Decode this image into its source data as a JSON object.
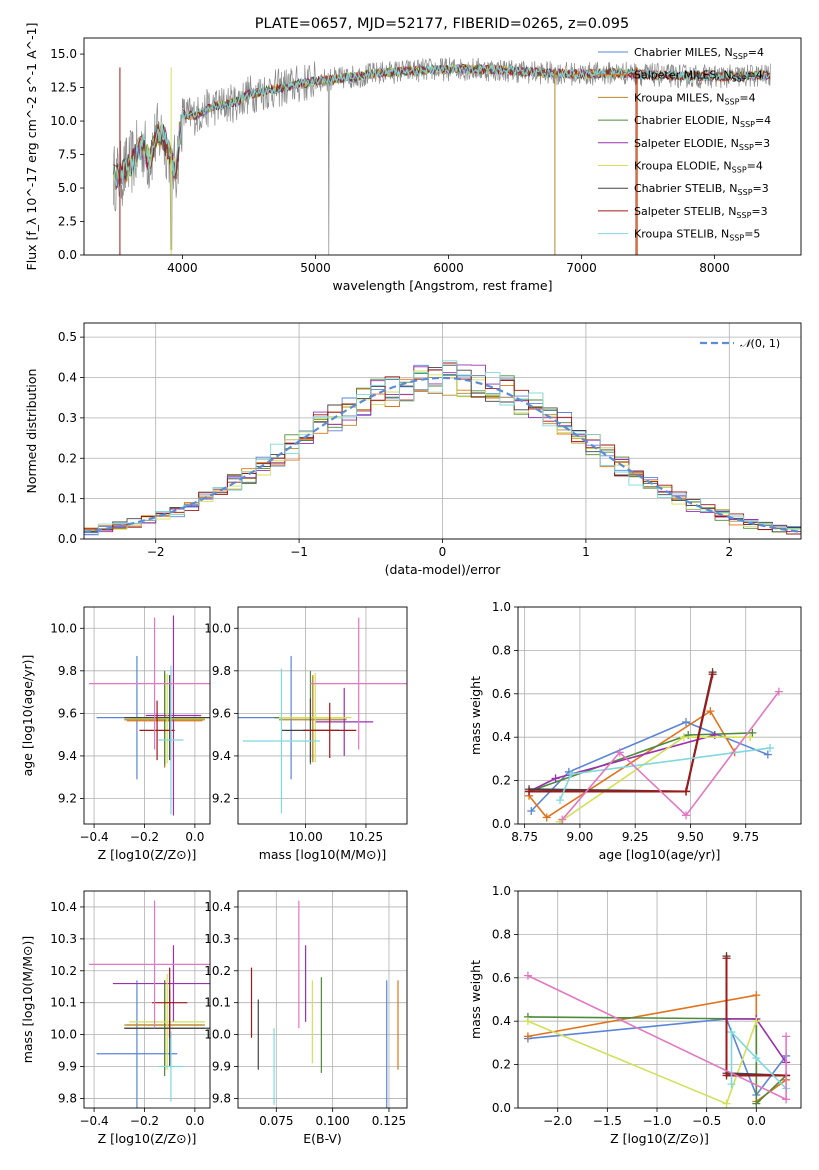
{
  "figure": {
    "title": "PLATE=0657, MJD=52177, FIBERID=0265, z=0.095"
  },
  "models": [
    {
      "name": "Chabrier MILES",
      "nssp": "4",
      "color": "#5b85d6"
    },
    {
      "name": "Salpeter MILES",
      "nssp": "4",
      "color": "#e0731c"
    },
    {
      "name": "Kroupa MILES",
      "nssp": "4",
      "color": "#b5882a"
    },
    {
      "name": "Chabrier ELODIE",
      "nssp": "4",
      "color": "#4f8a3c"
    },
    {
      "name": "Salpeter ELODIE",
      "nssp": "3",
      "color": "#9b30b0"
    },
    {
      "name": "Kroupa ELODIE",
      "nssp": "4",
      "color": "#d4e05a"
    },
    {
      "name": "Chabrier STELIB",
      "nssp": "3",
      "color": "#444444"
    },
    {
      "name": "Salpeter STELIB",
      "nssp": "3",
      "color": "#a01818"
    },
    {
      "name": "Kroupa STELIB",
      "nssp": "5",
      "color": "#7fd8dc"
    }
  ],
  "chart_data": [
    {
      "id": "spectrum",
      "type": "line",
      "title": "PLATE=0657, MJD=52177, FIBERID=0265, z=0.095",
      "xlabel": "wavelength [Angstrom, rest frame]",
      "ylabel": "Flux [f_λ 10^-17 erg cm^-2 s^-1 A^-1]",
      "xlim": [
        3260,
        8650
      ],
      "ylim": [
        0,
        16.2
      ],
      "xticks": [
        4000,
        5000,
        6000,
        7000,
        8000
      ],
      "yticks": [
        0.0,
        2.5,
        5.0,
        7.5,
        10.0,
        12.5,
        15.0
      ],
      "legend": "right",
      "grid": false,
      "data_x": [
        3500,
        3550,
        3600,
        3650,
        3700,
        3750,
        3800,
        3850,
        3900,
        3950,
        4000,
        4100,
        4200,
        4300,
        4400,
        4500,
        4600,
        4800,
        5000,
        5200,
        5500,
        5800,
        6100,
        6400,
        6700,
        7000,
        7300,
        7600,
        8000,
        8400
      ],
      "data_y": [
        5.8,
        6.1,
        6.7,
        7.4,
        8.2,
        7.0,
        8.8,
        9.0,
        7.6,
        6.2,
        10.5,
        10.4,
        11.0,
        11.2,
        11.4,
        12.0,
        12.2,
        12.6,
        13.0,
        13.2,
        13.6,
        13.8,
        13.9,
        13.8,
        13.6,
        13.5,
        13.6,
        13.4,
        13.3,
        13.4
      ]
    },
    {
      "id": "residuals",
      "type": "line",
      "xlabel": "(data-model)/error",
      "ylabel": "Normed distribution",
      "xlim": [
        -2.5,
        2.5
      ],
      "ylim": [
        0,
        0.535
      ],
      "xticks": [
        -2,
        -1,
        0,
        1,
        2
      ],
      "xtick_labels": [
        "−2",
        "−1",
        "0",
        "1",
        "2"
      ],
      "yticks": [
        0.0,
        0.1,
        0.2,
        0.3,
        0.4,
        0.5
      ],
      "grid": true,
      "legend": "top-right",
      "reference": {
        "name": "N(0,1)",
        "mu": 0,
        "sigma": 1
      },
      "bin_width": 0.1
    },
    {
      "id": "age-vs-Z",
      "type": "scatter",
      "xlabel": "Z [log10(Z/Z⊙)]",
      "ylabel": "age  [log10(age/yr)]",
      "xlim": [
        -0.44,
        0.06
      ],
      "ylim": [
        9.08,
        10.1
      ],
      "xticks": [
        -0.4,
        -0.2,
        0.0
      ],
      "xtick_labels": [
        "−0.4",
        "−0.2",
        "0.0"
      ],
      "yticks": [
        9.2,
        9.4,
        9.6,
        9.8,
        10.0
      ],
      "grid": true,
      "errorbars": [
        {
          "model": 0,
          "x": -0.23,
          "xerr": 0.16,
          "y": 9.58,
          "yerr": 0.29
        },
        {
          "model": 1,
          "x": -0.12,
          "xerr": 0.15,
          "y": 9.565,
          "yerr": 0.22
        },
        {
          "model": 2,
          "x": -0.12,
          "xerr": 0.16,
          "y": 9.57,
          "yerr": 0.22
        },
        {
          "model": 3,
          "x": -0.12,
          "xerr": 0.16,
          "y": 9.58,
          "yerr": 0.22
        },
        {
          "model": 4,
          "x": -0.085,
          "xerr": 0.11,
          "y": 9.59,
          "yerr": 0.47
        },
        {
          "model": 5,
          "x": -0.11,
          "xerr": 0.15,
          "y": 9.575,
          "yerr": 0.21
        },
        {
          "model": 6,
          "x": -0.1,
          "xerr": 0.18,
          "y": 9.58,
          "yerr": 0.2
        },
        {
          "model": 7,
          "x": -0.15,
          "xerr": 0.07,
          "y": 9.52,
          "yerr": 0.14
        },
        {
          "model": 8,
          "x": -0.095,
          "xerr": 0.05,
          "y": 9.475,
          "yerr": 0.35
        },
        {
          "model": 9,
          "x": -0.16,
          "xerr": 0.26,
          "y": 9.74,
          "yerr": 0.31
        }
      ]
    },
    {
      "id": "age-vs-mass",
      "type": "scatter",
      "xlabel": "mass [log10(M/M⊙)]",
      "xlim": [
        9.72,
        10.42
      ],
      "ylim": [
        9.08,
        10.1
      ],
      "xticks": [
        10.0,
        10.25
      ],
      "xtick_labels": [
        "10.00",
        "10.25"
      ],
      "yticks": [
        9.2,
        9.4,
        9.6,
        9.8,
        10.0
      ],
      "grid": true,
      "errorbars": [
        {
          "model": 0,
          "x": 9.94,
          "xerr": 0.23,
          "y": 9.58,
          "yerr": 0.29
        },
        {
          "model": 1,
          "x": 10.03,
          "xerr": 0.14,
          "y": 9.58,
          "yerr": 0.2
        },
        {
          "model": 2,
          "x": 10.03,
          "xerr": 0.14,
          "y": 9.57,
          "yerr": 0.2
        },
        {
          "model": 3,
          "x": 10.02,
          "xerr": 0.15,
          "y": 9.58,
          "yerr": 0.22
        },
        {
          "model": 4,
          "x": 10.16,
          "xerr": 0.12,
          "y": 9.56,
          "yerr": 0.16
        },
        {
          "model": 5,
          "x": 10.04,
          "xerr": 0.15,
          "y": 9.58,
          "yerr": 0.21
        },
        {
          "model": 6,
          "x": 10.02,
          "xerr": 0.12,
          "y": 9.52,
          "yerr": 0.15
        },
        {
          "model": 7,
          "x": 10.1,
          "xerr": 0.11,
          "y": 9.52,
          "yerr": 0.13
        },
        {
          "model": 8,
          "x": 9.9,
          "xerr": 0.16,
          "y": 9.47,
          "yerr": 0.34
        },
        {
          "model": 9,
          "x": 10.22,
          "xerr": 0.2,
          "y": 9.74,
          "yerr": 0.31
        }
      ]
    },
    {
      "id": "weight-vs-age",
      "type": "line",
      "xlabel": "age  [log10(age/yr)]",
      "ylabel": "mass weight",
      "xlim": [
        8.72,
        10.0
      ],
      "ylim": [
        0,
        1.0
      ],
      "xticks": [
        8.75,
        9.0,
        9.25,
        9.5,
        9.75
      ],
      "xtick_labels": [
        "8.75",
        "9.00",
        "9.25",
        "9.50",
        "9.75"
      ],
      "yticks": [
        0.0,
        0.2,
        0.4,
        0.6,
        0.8,
        1.0
      ],
      "grid": true,
      "series": [
        {
          "model": 0,
          "x": [
            8.78,
            8.95,
            9.48,
            9.85
          ],
          "y": [
            0.06,
            0.24,
            0.47,
            0.32
          ]
        },
        {
          "model": 1,
          "x": [
            8.77,
            8.85,
            9.59,
            9.7
          ],
          "y": [
            0.13,
            0.03,
            0.52,
            0.33
          ]
        },
        {
          "model": 3,
          "x": [
            8.77,
            9.49,
            9.78
          ],
          "y": [
            0.15,
            0.41,
            0.42
          ]
        },
        {
          "model": 4,
          "x": [
            8.77,
            8.89,
            9.61
          ],
          "y": [
            0.15,
            0.21,
            0.41
          ]
        },
        {
          "model": 5,
          "x": [
            8.91,
            9.47,
            9.77
          ],
          "y": [
            0.01,
            0.4,
            0.4
          ]
        },
        {
          "model": 6,
          "x": [
            8.77,
            9.48,
            9.6
          ],
          "y": [
            0.16,
            0.15,
            0.7
          ]
        },
        {
          "model": 7,
          "x": [
            8.77,
            9.48,
            9.6
          ],
          "y": [
            0.15,
            0.15,
            0.69
          ]
        },
        {
          "model": 8,
          "x": [
            8.91,
            8.96,
            9.86
          ],
          "y": [
            0.11,
            0.23,
            0.35
          ]
        },
        {
          "model": 9,
          "x": [
            8.92,
            9.18,
            9.48,
            9.9
          ],
          "y": [
            0.02,
            0.33,
            0.04,
            0.61
          ]
        }
      ]
    },
    {
      "id": "mass-vs-Z",
      "type": "scatter",
      "xlabel": "Z [log10(Z/Z⊙)]",
      "ylabel": "mass [log10(M/M⊙)]",
      "xlim": [
        -0.44,
        0.06
      ],
      "ylim": [
        9.77,
        10.45
      ],
      "xticks": [
        -0.4,
        -0.2,
        0.0
      ],
      "xtick_labels": [
        "−0.4",
        "−0.2",
        "0.0"
      ],
      "yticks": [
        9.8,
        9.9,
        10.0,
        10.1,
        10.2,
        10.3,
        10.4
      ],
      "grid": true,
      "errorbars": [
        {
          "model": 0,
          "x": -0.23,
          "xerr": 0.16,
          "y": 9.94,
          "yerr": 0.23
        },
        {
          "model": 1,
          "x": -0.12,
          "xerr": 0.15,
          "y": 10.03,
          "yerr": 0.14
        },
        {
          "model": 2,
          "x": -0.12,
          "xerr": 0.16,
          "y": 10.03,
          "yerr": 0.14
        },
        {
          "model": 3,
          "x": -0.12,
          "xerr": 0.16,
          "y": 10.02,
          "yerr": 0.15
        },
        {
          "model": 4,
          "x": -0.085,
          "xerr": 0.24,
          "y": 10.16,
          "yerr": 0.12
        },
        {
          "model": 5,
          "x": -0.11,
          "xerr": 0.15,
          "y": 10.04,
          "yerr": 0.15
        },
        {
          "model": 6,
          "x": -0.1,
          "xerr": 0.18,
          "y": 10.02,
          "yerr": 0.12
        },
        {
          "model": 7,
          "x": -0.1,
          "xerr": 0.07,
          "y": 10.1,
          "yerr": 0.11
        },
        {
          "model": 8,
          "x": -0.095,
          "xerr": 0.05,
          "y": 9.9,
          "yerr": 0.11
        },
        {
          "model": 9,
          "x": -0.16,
          "xerr": 0.26,
          "y": 10.22,
          "yerr": 0.2
        }
      ]
    },
    {
      "id": "mass-vs-EBV",
      "type": "scatter",
      "xlabel": "E(B-V)",
      "xlim": [
        0.058,
        0.133
      ],
      "ylim": [
        9.77,
        10.45
      ],
      "xticks": [
        0.075,
        0.1,
        0.125
      ],
      "xtick_labels": [
        "0.075",
        "0.100",
        "0.125"
      ],
      "yticks": [
        9.8,
        9.9,
        10.0,
        10.1,
        10.2,
        10.3,
        10.4
      ],
      "grid": true,
      "errorbars": [
        {
          "model": 0,
          "x": 0.124,
          "y": 9.94,
          "yerr": 0.23
        },
        {
          "model": 1,
          "x": 0.129,
          "y": 10.03,
          "yerr": 0.14
        },
        {
          "model": 3,
          "x": 0.095,
          "y": 10.03,
          "yerr": 0.15
        },
        {
          "model": 4,
          "x": 0.088,
          "y": 10.16,
          "yerr": 0.12
        },
        {
          "model": 5,
          "x": 0.091,
          "y": 10.04,
          "yerr": 0.13
        },
        {
          "model": 6,
          "x": 0.067,
          "y": 10.0,
          "yerr": 0.11
        },
        {
          "model": 7,
          "x": 0.064,
          "y": 10.1,
          "yerr": 0.11
        },
        {
          "model": 8,
          "x": 0.074,
          "y": 9.9,
          "yerr": 0.12
        },
        {
          "model": 9,
          "x": 0.085,
          "y": 10.22,
          "yerr": 0.2
        }
      ]
    },
    {
      "id": "weight-vs-Z",
      "type": "line",
      "xlabel": "Z [log10(Z/Z⊙)]",
      "ylabel": "mass weight",
      "xlim": [
        -2.4,
        0.45
      ],
      "ylim": [
        0,
        1.0
      ],
      "xticks": [
        -2.0,
        -1.5,
        -1.0,
        -0.5,
        0.0
      ],
      "xtick_labels": [
        "−2.0",
        "−1.5",
        "−1.0",
        "−0.5",
        "0.0"
      ],
      "yticks": [
        0.0,
        0.2,
        0.4,
        0.6,
        0.8,
        1.0
      ],
      "grid": true,
      "series": [
        {
          "model": 0,
          "x": [
            -2.3,
            -0.3,
            0.0,
            0.3
          ],
          "y": [
            0.32,
            0.41,
            0.06,
            0.24
          ]
        },
        {
          "model": 1,
          "x": [
            -2.3,
            0.0,
            0.0,
            0.3
          ],
          "y": [
            0.33,
            0.52,
            0.03,
            0.13
          ]
        },
        {
          "model": 3,
          "x": [
            -2.3,
            0.0,
            0.0,
            0.3
          ],
          "y": [
            0.42,
            0.41,
            0.02,
            0.15
          ]
        },
        {
          "model": 4,
          "x": [
            -0.3,
            0.0,
            0.3
          ],
          "y": [
            0.41,
            0.41,
            0.21
          ]
        },
        {
          "model": 5,
          "x": [
            -2.3,
            -0.3,
            0.0
          ],
          "y": [
            0.4,
            0.02,
            0.4
          ]
        },
        {
          "model": 6,
          "x": [
            -0.3,
            -0.3,
            0.3
          ],
          "y": [
            0.7,
            0.16,
            0.15
          ]
        },
        {
          "model": 7,
          "x": [
            -0.3,
            -0.3,
            0.3
          ],
          "y": [
            0.69,
            0.15,
            0.15
          ]
        },
        {
          "model": 8,
          "x": [
            -0.25,
            -0.25,
            0.0,
            0.3
          ],
          "y": [
            0.11,
            0.35,
            0.23,
            0.09
          ]
        },
        {
          "model": 9,
          "x": [
            -2.3,
            0.3,
            0.3
          ],
          "y": [
            0.61,
            0.04,
            0.33
          ]
        }
      ]
    }
  ]
}
